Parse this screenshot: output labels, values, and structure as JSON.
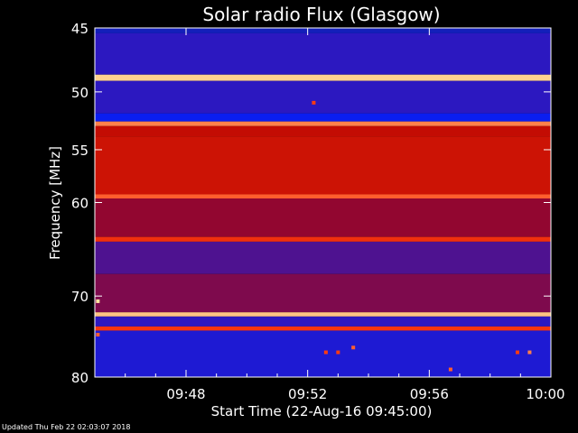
{
  "chart_data": {
    "type": "heatmap",
    "title": "Solar radio Flux (Glasgow)",
    "xlabel": "Start Time (22-Aug-16 09:45:00)",
    "ylabel": "Frequency [MHz]",
    "xlim_minutes_after_0945": [
      0,
      15
    ],
    "ylim_mhz": [
      45,
      80
    ],
    "y_scale": "log",
    "y_ticks": [
      45,
      50,
      55,
      60,
      70,
      80
    ],
    "x_ticks": [
      {
        "label": "09:48",
        "minutes": 3
      },
      {
        "label": "09:52",
        "minutes": 7
      },
      {
        "label": "09:56",
        "minutes": 11
      },
      {
        "label": "10:00",
        "minutes": 15
      }
    ],
    "grid": false,
    "colormap": [
      "#20206a",
      "#0a1ef0",
      "#b40000",
      "#ff3c10",
      "#ffe6a0"
    ],
    "bands": [
      {
        "from_mhz": 45,
        "to_mhz": 45.4,
        "level": 0.15
      },
      {
        "from_mhz": 45.4,
        "to_mhz": 48.6,
        "level": 0.3
      },
      {
        "from_mhz": 48.6,
        "to_mhz": 49.1,
        "level": 0.97
      },
      {
        "from_mhz": 49.1,
        "to_mhz": 51.8,
        "level": 0.3
      },
      {
        "from_mhz": 51.8,
        "to_mhz": 52.5,
        "level": 0.25
      },
      {
        "from_mhz": 52.5,
        "to_mhz": 52.9,
        "level": 0.85
      },
      {
        "from_mhz": 52.9,
        "to_mhz": 53.8,
        "level": 0.55
      },
      {
        "from_mhz": 53.8,
        "to_mhz": 59.2,
        "level": 0.58
      },
      {
        "from_mhz": 59.2,
        "to_mhz": 59.6,
        "level": 0.8
      },
      {
        "from_mhz": 59.6,
        "to_mhz": 63.5,
        "level": 0.45
      },
      {
        "from_mhz": 63.5,
        "to_mhz": 64.0,
        "level": 0.7
      },
      {
        "from_mhz": 64.0,
        "to_mhz": 67.5,
        "level": 0.35
      },
      {
        "from_mhz": 67.5,
        "to_mhz": 71.9,
        "level": 0.42
      },
      {
        "from_mhz": 71.9,
        "to_mhz": 72.4,
        "level": 0.95
      },
      {
        "from_mhz": 72.4,
        "to_mhz": 73.6,
        "level": 0.3
      },
      {
        "from_mhz": 73.6,
        "to_mhz": 74.1,
        "level": 0.72
      },
      {
        "from_mhz": 74.1,
        "to_mhz": 80,
        "level": 0.28
      }
    ],
    "spots": [
      {
        "minutes": 7.2,
        "mhz": 50.9,
        "level": 0.75
      },
      {
        "minutes": 7.6,
        "mhz": 76.8,
        "level": 0.75
      },
      {
        "minutes": 8.0,
        "mhz": 76.8,
        "level": 0.75
      },
      {
        "minutes": 8.5,
        "mhz": 76.2,
        "level": 0.8
      },
      {
        "minutes": 11.7,
        "mhz": 79.0,
        "level": 0.8
      },
      {
        "minutes": 13.9,
        "mhz": 76.8,
        "level": 0.75
      },
      {
        "minutes": 14.3,
        "mhz": 76.8,
        "level": 0.85
      },
      {
        "minutes": 0.1,
        "mhz": 70.6,
        "level": 1.0
      },
      {
        "minutes": 0.1,
        "mhz": 74.6,
        "level": 0.8
      }
    ]
  },
  "footer": {
    "updated": "Updated Thu Feb 22 02:03:07 2018"
  }
}
